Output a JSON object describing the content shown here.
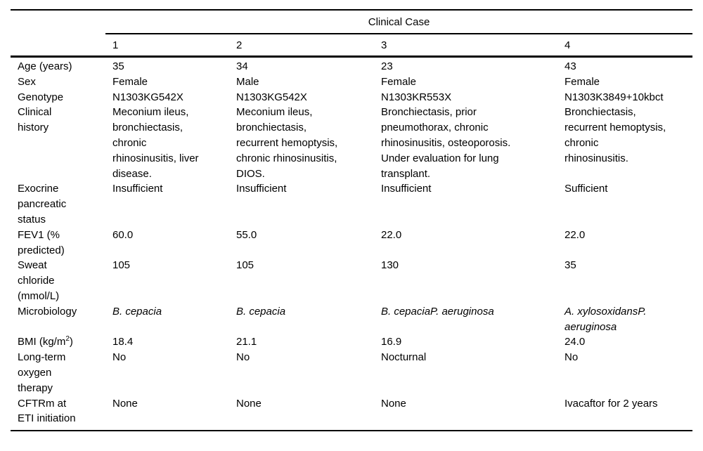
{
  "table": {
    "group_header": "Clinical Case",
    "case_numbers": [
      "1",
      "2",
      "3",
      "4"
    ],
    "rows": [
      {
        "label": "Age (years)",
        "values": [
          "35",
          "34",
          "23",
          "43"
        ]
      },
      {
        "label": "Sex",
        "values": [
          "Female",
          "Male",
          "Female",
          "Female"
        ]
      },
      {
        "label": "Genotype",
        "values": [
          "N1303KG542X",
          "N1303KG542X",
          "N1303KR553X",
          "N1303K3849+10kbct"
        ]
      },
      {
        "label": "Clinical\nhistory",
        "values": [
          "Meconium ileus,\nbronchiectasis,\nchronic\nrhinosinusitis, liver\ndisease.",
          "Meconium ileus,\nbronchiectasis,\nrecurrent hemoptysis,\nchronic rhinosinusitis,\nDIOS.",
          "Bronchiectasis, prior\npneumothorax, chronic\nrhinosinusitis, osteoporosis.\nUnder evaluation for lung\ntransplant.",
          "Bronchiectasis,\nrecurrent hemoptysis,\nchronic\nrhinosinusitis."
        ]
      },
      {
        "label": "Exocrine\npancreatic\nstatus",
        "values": [
          "Insufficient",
          "Insufficient",
          "Insufficient",
          "Sufficient"
        ]
      },
      {
        "label": "FEV1 (%\npredicted)",
        "values": [
          "60.0",
          "55.0",
          "22.0",
          "22.0"
        ]
      },
      {
        "label": "Sweat\nchloride\n(mmol/L)",
        "values": [
          "105",
          "105",
          "130",
          "35"
        ]
      },
      {
        "label": "Microbiology",
        "values": [
          "B. cepacia",
          "B. cepacia",
          "B. cepaciaP. aeruginosa",
          "A. xylosoxidansP.\naeruginosa"
        ]
      },
      {
        "label_pre": "BMI (kg/m",
        "label_sup": "2",
        "label_post": ")",
        "values": [
          "18.4",
          "21.1",
          "16.9",
          "24.0"
        ]
      },
      {
        "label": "Long-term\noxygen\ntherapy",
        "values": [
          "No",
          "No",
          "Nocturnal",
          "No"
        ]
      },
      {
        "label": "CFTRm at\nETI initiation",
        "values": [
          "None",
          "None",
          "None",
          "Ivacaftor for 2 years"
        ]
      }
    ],
    "colors": {
      "text": "#000000",
      "background": "#ffffff",
      "rule": "#000000"
    }
  }
}
